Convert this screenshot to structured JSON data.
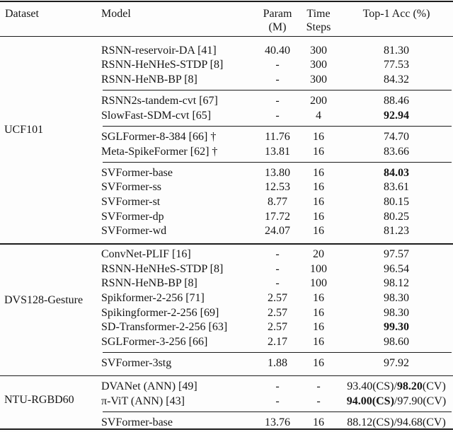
{
  "table": {
    "headers": {
      "dataset": "Dataset",
      "model": "Model",
      "param_line1": "Param",
      "param_line2": "(M)",
      "time_line1": "Time",
      "time_line2": "Steps",
      "acc": "Top-1 Acc (%)"
    },
    "sections": [
      {
        "dataset": "UCF101",
        "groups": [
          {
            "rows": [
              {
                "model": "RSNN-reservoir-DA [41]",
                "param": "40.40",
                "time": "300",
                "acc": [
                  {
                    "text": "81.30"
                  }
                ]
              },
              {
                "model": "RSNN-HeNHeS-STDP [8]",
                "param": "-",
                "time": "300",
                "acc": [
                  {
                    "text": "77.53"
                  }
                ]
              },
              {
                "model": "RSNN-HeNB-BP [8]",
                "param": "-",
                "time": "300",
                "acc": [
                  {
                    "text": "84.32"
                  }
                ]
              }
            ]
          },
          {
            "rows": [
              {
                "model": "RSNN2s-tandem-cvt [67]",
                "param": "-",
                "time": "200",
                "acc": [
                  {
                    "text": "88.46"
                  }
                ]
              },
              {
                "model": "SlowFast-SDM-cvt [65]",
                "param": "-",
                "time": "4",
                "acc": [
                  {
                    "text": "92.94",
                    "bold": true
                  }
                ]
              }
            ]
          },
          {
            "rows": [
              {
                "model": "SGLFormer-8-384 [66] †",
                "param": "11.76",
                "time": "16",
                "acc": [
                  {
                    "text": "74.70"
                  }
                ]
              },
              {
                "model": "Meta-SpikeFormer [62] †",
                "param": "13.81",
                "time": "16",
                "acc": [
                  {
                    "text": "83.66"
                  }
                ]
              }
            ]
          },
          {
            "rows": [
              {
                "model": "SVFormer-base",
                "param": "13.80",
                "time": "16",
                "acc": [
                  {
                    "text": "84.03",
                    "bold": true
                  }
                ]
              },
              {
                "model": "SVFormer-ss",
                "param": "12.53",
                "time": "16",
                "acc": [
                  {
                    "text": "83.61"
                  }
                ]
              },
              {
                "model": "SVFormer-st",
                "param": "8.77",
                "time": "16",
                "acc": [
                  {
                    "text": "80.15"
                  }
                ]
              },
              {
                "model": "SVFormer-dp",
                "param": "17.72",
                "time": "16",
                "acc": [
                  {
                    "text": "80.25"
                  }
                ]
              },
              {
                "model": "SVFormer-wd",
                "param": "24.07",
                "time": "16",
                "acc": [
                  {
                    "text": "81.23"
                  }
                ]
              }
            ]
          }
        ]
      },
      {
        "dataset": "DVS128-Gesture",
        "groups": [
          {
            "rows": [
              {
                "model": "ConvNet-PLIF [16]",
                "param": "-",
                "time": "20",
                "acc": [
                  {
                    "text": "97.57"
                  }
                ]
              },
              {
                "model": "RSNN-HeNHeS-STDP [8]",
                "param": "-",
                "time": "100",
                "acc": [
                  {
                    "text": "96.54"
                  }
                ]
              },
              {
                "model": "RSNN-HeNB-BP [8]",
                "param": "-",
                "time": "100",
                "acc": [
                  {
                    "text": "98.12"
                  }
                ]
              },
              {
                "model": "Spikformer-2-256 [71]",
                "param": "2.57",
                "time": "16",
                "acc": [
                  {
                    "text": "98.30"
                  }
                ]
              },
              {
                "model": "Spikingformer-2-256 [69]",
                "param": "2.57",
                "time": "16",
                "acc": [
                  {
                    "text": "98.30"
                  }
                ]
              },
              {
                "model": "SD-Transformer-2-256 [63]",
                "param": "2.57",
                "time": "16",
                "acc": [
                  {
                    "text": "99.30",
                    "bold": true
                  }
                ]
              },
              {
                "model": "SGLFormer-3-256 [66]",
                "param": "2.17",
                "time": "16",
                "acc": [
                  {
                    "text": "98.60"
                  }
                ]
              }
            ]
          },
          {
            "rows": [
              {
                "model": "SVFormer-3stg",
                "param": "1.88",
                "time": "16",
                "acc": [
                  {
                    "text": "97.92"
                  }
                ]
              }
            ]
          }
        ]
      },
      {
        "dataset": "NTU-RGBD60",
        "groups": [
          {
            "rows": [
              {
                "model": "DVANet (ANN) [49]",
                "param": "-",
                "time": "-",
                "acc": [
                  {
                    "text": "93.40(CS)/"
                  },
                  {
                    "text": "98.20",
                    "bold": true
                  },
                  {
                    "text": "(CV)"
                  }
                ]
              },
              {
                "model": "π-ViT (ANN) [43]",
                "param": "-",
                "time": "-",
                "acc": [
                  {
                    "text": "94.00(CS)",
                    "bold": true
                  },
                  {
                    "text": "/97.90(CV)"
                  }
                ]
              }
            ]
          },
          {
            "rows": [
              {
                "model": "SVFormer-base",
                "param": "13.76",
                "time": "16",
                "acc": [
                  {
                    "text": "88.12(CS)/94.68(CV)"
                  }
                ]
              }
            ]
          }
        ]
      }
    ]
  }
}
